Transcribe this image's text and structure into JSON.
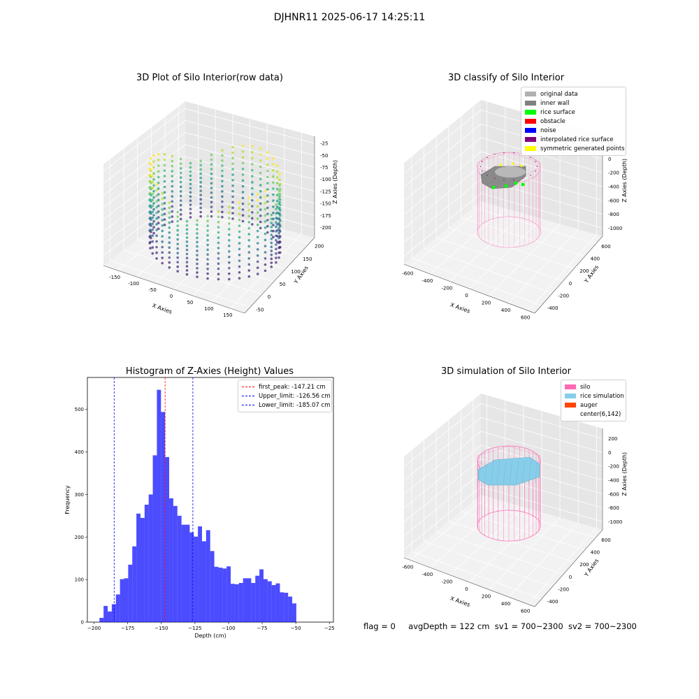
{
  "suptitle": "DJHNR11 2025-06-17 14:25:11",
  "footer": {
    "flag": "flag = 0",
    "avg": "avgDepth = 122 cm",
    "sv1": "sv1 = 700~2300",
    "sv2": "sv2 = 700~2300"
  },
  "colors": {
    "silo": "#ff69b4",
    "rice_simulation": "#87ceeb",
    "auger": "#ff4500",
    "histogram": "#0000ff",
    "peak_line": "#ff0000",
    "limit_line": "#0000ff"
  },
  "chart_data": [
    {
      "type": "scatter",
      "title": "3D Plot of Silo Interior(row data)",
      "xlabel": "X Axies",
      "ylabel": "Y Axies",
      "zlabel": "Z Axies (Depth)",
      "xticks": [
        "-150",
        "-100",
        "-50",
        "0",
        "50",
        "100",
        "150"
      ],
      "yticks": [
        "-50",
        "0",
        "50",
        "100",
        "150",
        "200"
      ],
      "zticks": [
        "-25",
        "-50",
        "-75",
        "-100",
        "-125",
        "-150",
        "-175",
        "-200"
      ],
      "xlim": [
        -175,
        175
      ],
      "ylim": [
        -75,
        225
      ],
      "zlim": [
        -210,
        -20
      ],
      "colormap": "viridis"
    },
    {
      "type": "scatter",
      "title": "3D classify of Silo Interior",
      "xlabel": "X Axies",
      "ylabel": "Y Axies",
      "zlabel": "Z Axies (Depth)",
      "xticks": [
        "-600",
        "-400",
        "-200",
        "0",
        "200",
        "400",
        "600"
      ],
      "yticks": [
        "-400",
        "-200",
        "0",
        "200",
        "400",
        "600"
      ],
      "zticks": [
        "200",
        "0",
        "-200",
        "-400",
        "-600",
        "-800",
        "-1000"
      ],
      "legend": [
        {
          "label": "original data",
          "color": "#b0b0b0"
        },
        {
          "label": "inner wall",
          "color": "#808080"
        },
        {
          "label": "rice surface",
          "color": "#00ff00"
        },
        {
          "label": "obstacle",
          "color": "#ff0000"
        },
        {
          "label": "noise",
          "color": "#0000ff"
        },
        {
          "label": "interpolated rice surface",
          "color": "#800080"
        },
        {
          "label": "symmetric generated points",
          "color": "#ffff00"
        }
      ]
    },
    {
      "type": "bar",
      "title": "Histogram of Z-Axies (Height) Values",
      "xlabel": "Depth (cm)",
      "ylabel": "Frequency",
      "xlim": [
        -205,
        -22
      ],
      "ylim": [
        0,
        575
      ],
      "xticks": [
        -200,
        -175,
        -150,
        -125,
        -100,
        -75,
        -50,
        -25
      ],
      "yticks": [
        0,
        100,
        200,
        300,
        400,
        500
      ],
      "bin_start": -196,
      "bin_width": 3.05,
      "values": [
        10,
        38,
        25,
        42,
        65,
        101,
        103,
        135,
        178,
        255,
        245,
        276,
        300,
        392,
        546,
        494,
        388,
        291,
        273,
        250,
        229,
        229,
        211,
        201,
        225,
        190,
        216,
        167,
        130,
        128,
        126,
        131,
        90,
        89,
        92,
        103,
        103,
        92,
        109,
        124,
        101,
        96,
        87,
        91,
        70,
        69,
        60,
        44
      ],
      "vlines": [
        {
          "x": -147.21,
          "color": "#ff0000",
          "label": "first_peak: -147.21 cm"
        },
        {
          "x": -126.56,
          "color": "#0000ff",
          "label": "Upper_limit: -126.56 cm"
        },
        {
          "x": -185.07,
          "color": "#0000ff",
          "label": "Lower_limit: -185.07 cm"
        }
      ],
      "legend_position": "upper right"
    },
    {
      "type": "scatter",
      "title": "3D simulation of Silo Interior",
      "xlabel": "X Axies",
      "ylabel": "Y Axies",
      "zlabel": "Z Axies (Depth)",
      "xticks": [
        "-600",
        "-400",
        "-200",
        "0",
        "200",
        "400",
        "600"
      ],
      "yticks": [
        "-400",
        "-200",
        "0",
        "200",
        "400",
        "600"
      ],
      "zticks": [
        "200",
        "0",
        "-200",
        "-400",
        "-600",
        "-800",
        "-1000"
      ],
      "legend": [
        {
          "label": "silo",
          "color": "#ff69b4"
        },
        {
          "label": "rice simulation",
          "color": "#87ceeb"
        },
        {
          "label": "auger",
          "color": "#ff4500"
        },
        {
          "label": "center(6,142)",
          "color": ""
        }
      ]
    }
  ]
}
